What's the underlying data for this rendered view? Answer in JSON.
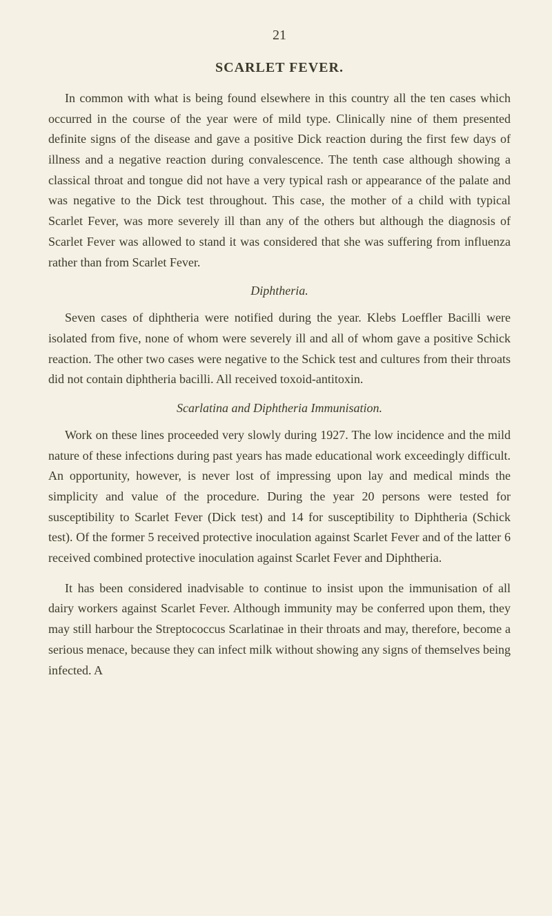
{
  "page": {
    "number": "21",
    "title": "SCARLET FEVER.",
    "background_color": "#f5f1e4",
    "text_color": "#3a3a2a",
    "sections": [
      {
        "type": "paragraph",
        "text": "In common with what is being found elsewhere in this country all the ten cases which occurred in the course of the year were of mild type. Clinically nine of them presented definite signs of the disease and gave a positive Dick reaction during the first few days of illness and a negative reaction during convalescence. The tenth case although showing a classical throat and tongue did not have a very typical rash or appearance of the palate and was negative to the Dick test throughout. This case, the mother of a child with typical Scarlet Fever, was more severely ill than any of the others but although the diagnosis of Scarlet Fever was allowed to stand it was considered that she was suffering from influenza rather than from Scarlet Fever."
      },
      {
        "type": "subtitle",
        "text": "Diphtheria."
      },
      {
        "type": "paragraph",
        "text": "Seven cases of diphtheria were notified during the year. Klebs Loeffler Bacilli were isolated from five, none of whom were severely ill and all of whom gave a positive Schick reaction. The other two cases were negative to the Schick test and cultures from their throats did not contain diphtheria bacilli. All received toxoid-antitoxin."
      },
      {
        "type": "subtitle",
        "text": "Scarlatina and Diphtheria Immunisation."
      },
      {
        "type": "paragraph",
        "text": "Work on these lines proceeded very slowly during 1927. The low incidence and the mild nature of these infections during past years has made educational work exceedingly difficult. An opportunity, however, is never lost of impressing upon lay and medical minds the simplicity and value of the procedure. During the year 20 persons were tested for susceptibility to Scarlet Fever (Dick test) and 14 for susceptibility to Diphtheria (Schick test). Of the former 5 received protective inoculation against Scarlet Fever and of the latter 6 received combined protective inoculation against Scarlet Fever and Diphtheria."
      },
      {
        "type": "paragraph",
        "text": "It has been considered inadvisable to continue to insist upon the immunisation of all dairy workers against Scarlet Fever. Although immunity may be conferred upon them, they may still harbour the Streptococcus Scarlatinae in their throats and may, therefore, become a serious menace, because they can infect milk without showing any signs of themselves being infected. A"
      }
    ]
  }
}
